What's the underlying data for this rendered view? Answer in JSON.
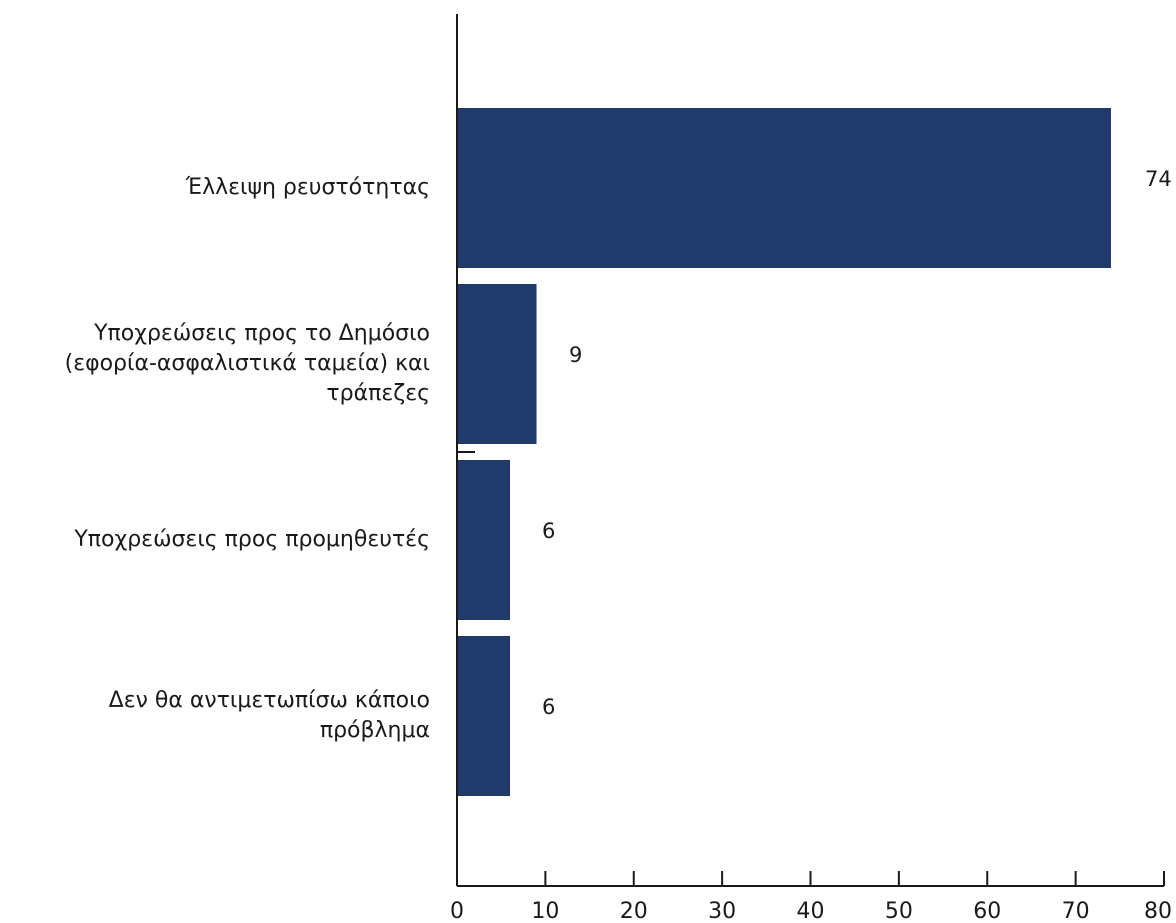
{
  "chart_data": {
    "type": "bar",
    "orientation": "horizontal",
    "categories": [
      [
        "Έλλειψη ρευστότητας"
      ],
      [
        "Υποχρεώσεις προς το Δημόσιο",
        "(εφορία-ασφαλιστικά ταμεία) και",
        "τράπεζες"
      ],
      [
        "Υποχρεώσεις προς προμηθευτές"
      ],
      [
        "Δεν θα αντιμετωπίσω κάποιο",
        "πρόβλημα"
      ]
    ],
    "values": [
      74,
      9,
      6,
      6
    ],
    "data_labels": [
      "74",
      "9",
      "6",
      "6"
    ],
    "xlim": [
      0,
      80
    ],
    "xticks": [
      0,
      10,
      20,
      30,
      40,
      50,
      60,
      70,
      80
    ],
    "xtick_labels": [
      "0",
      "10",
      "20",
      "30",
      "40",
      "50",
      "60",
      "70",
      "80"
    ],
    "title": "",
    "xlabel": "",
    "ylabel": "",
    "grid": false,
    "legend": "none",
    "bar_color": "#203b6b",
    "axis_color": "#1a1a1a"
  }
}
